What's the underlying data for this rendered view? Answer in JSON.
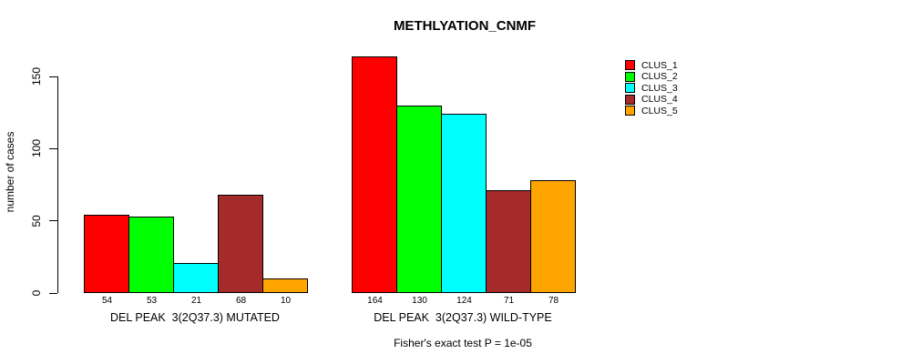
{
  "chart_data": {
    "type": "bar",
    "title": "METHLYATION_CNMF",
    "ylabel": "number of cases",
    "xlabel": "",
    "yticks": [
      0,
      50,
      100,
      150
    ],
    "ylim": [
      0,
      164
    ],
    "grid": false,
    "series_names": [
      "CLUS_1",
      "CLUS_2",
      "CLUS_3",
      "CLUS_4",
      "CLUS_5"
    ],
    "colors": [
      "#FF0000",
      "#00FF00",
      "#00FFFF",
      "#A52A2A",
      "#FFA500"
    ],
    "groups": [
      {
        "label": "DEL PEAK  3(2Q37.3) MUTATED",
        "values": [
          54,
          53,
          21,
          68,
          10
        ]
      },
      {
        "label": "DEL PEAK  3(2Q37.3) WILD-TYPE",
        "values": [
          164,
          130,
          124,
          71,
          78
        ]
      }
    ],
    "legend": {
      "position": "right",
      "entries": [
        "CLUS_1",
        "CLUS_2",
        "CLUS_3",
        "CLUS_4",
        "CLUS_5"
      ]
    },
    "footnote": "Fisher's exact test P = 1e-05"
  }
}
